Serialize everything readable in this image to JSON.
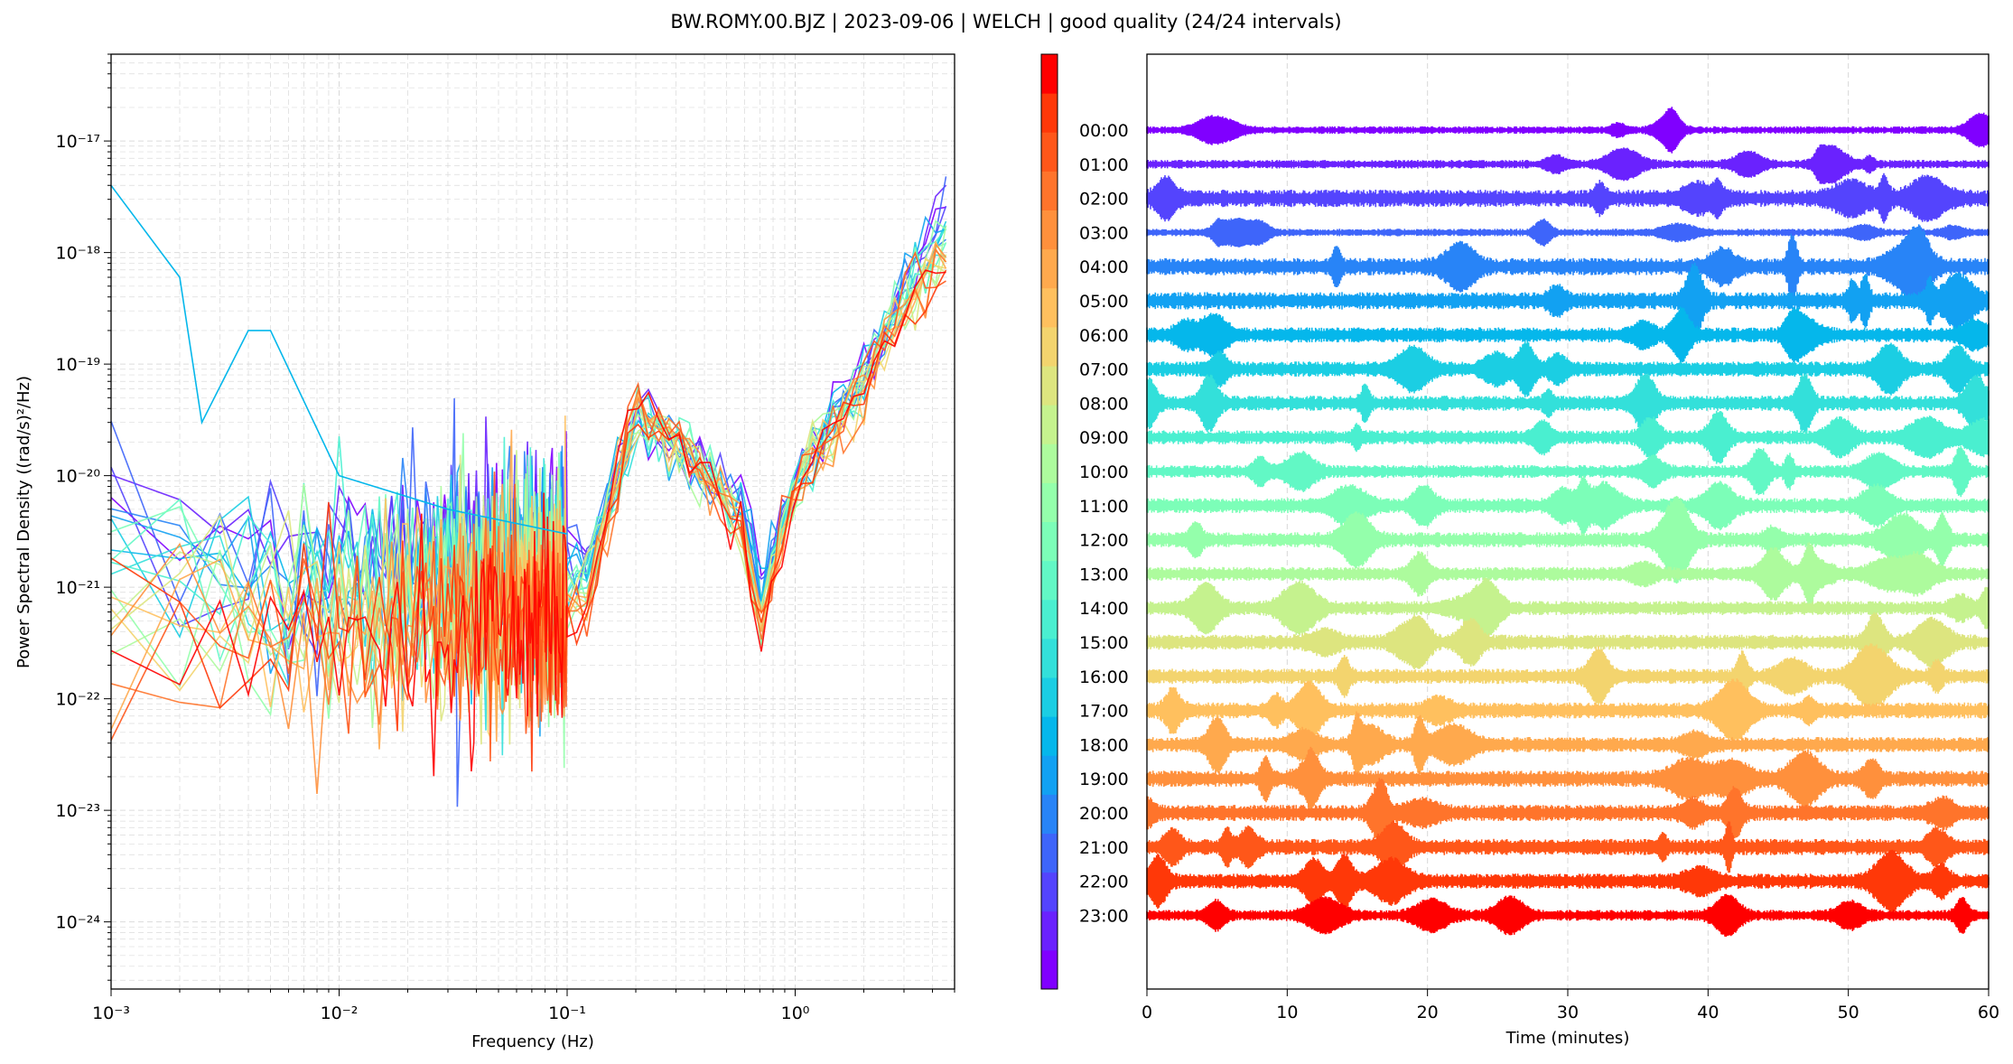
{
  "title": "BW.ROMY.00.BJZ | 2023-09-06 | WELCH | good quality (24/24 intervals)",
  "chart_data": [
    {
      "type": "line",
      "xlabel": "Frequency (Hz)",
      "ylabel": "Power Spectral Density ((rad/s)²/Hz)",
      "xscale": "log",
      "yscale": "log",
      "xlim": [
        0.001,
        5
      ],
      "ylim": [
        2.5e-25,
        6e-17
      ],
      "x_tick_labels": [
        "10⁻³",
        "10⁻²",
        "10⁻¹",
        "10⁰"
      ],
      "x_tick_values": [
        0.001,
        0.01,
        0.1,
        1
      ],
      "y_tick_labels": [
        "10⁻²⁴",
        "10⁻²³",
        "10⁻²²",
        "10⁻²¹",
        "10⁻²⁰",
        "10⁻¹⁹",
        "10⁻¹⁸",
        "10⁻¹⁷"
      ],
      "y_tick_values": [
        1e-24,
        1e-23,
        1e-22,
        1e-21,
        1e-20,
        1e-19,
        1e-18,
        1e-17
      ],
      "grid": true,
      "series_count": 24,
      "anchors": {
        "frequency": [
          0.001,
          0.003,
          0.01,
          0.03,
          0.06,
          0.1,
          0.12,
          0.2,
          0.3,
          0.6,
          0.7,
          1,
          2,
          3,
          5
        ],
        "psd_low_hour": [
          8e-21,
          2e-21,
          2e-21,
          2e-21,
          2e-21,
          2e-21,
          2e-21,
          3e-20,
          2e-20,
          5e-21,
          1e-21,
          1e-20,
          1e-19,
          5e-19,
          3e-18
        ],
        "psd_high_hour": [
          2e-22,
          3e-22,
          3e-22,
          4e-22,
          5e-22,
          5e-22,
          5e-22,
          4e-20,
          2e-20,
          3e-21,
          3e-22,
          1e-20,
          5e-20,
          3e-19,
          8e-19
        ]
      },
      "outlier_series": {
        "hour": 6,
        "frequency": [
          0.001,
          0.002,
          0.0025,
          0.004,
          0.005,
          0.01,
          0.03,
          0.1
        ],
        "psd": [
          4e-18,
          6e-19,
          3e-20,
          2e-19,
          2e-19,
          1e-20,
          5e-21,
          3e-21
        ]
      },
      "colormap": "rainbow"
    },
    {
      "type": "line",
      "subtype": "dayplot",
      "xlabel": "Time (minutes)",
      "xlim": [
        0,
        60
      ],
      "x_tick_labels": [
        "0",
        "10",
        "20",
        "30",
        "40",
        "50",
        "60"
      ],
      "x_tick_values": [
        0,
        10,
        20,
        30,
        40,
        50,
        60
      ],
      "y_tick_labels": [
        "00:00",
        "01:00",
        "02:00",
        "03:00",
        "04:00",
        "05:00",
        "06:00",
        "07:00",
        "08:00",
        "09:00",
        "10:00",
        "11:00",
        "12:00",
        "13:00",
        "14:00",
        "15:00",
        "16:00",
        "17:00",
        "18:00",
        "19:00",
        "20:00",
        "21:00",
        "22:00",
        "23:00"
      ],
      "trace_amplitudes_relative": [
        0.35,
        0.4,
        0.8,
        0.35,
        0.8,
        0.8,
        0.7,
        0.7,
        0.7,
        0.65,
        0.6,
        0.7,
        0.7,
        0.65,
        0.65,
        0.7,
        0.7,
        0.75,
        0.7,
        0.75,
        0.75,
        0.75,
        0.7,
        0.5
      ],
      "grid": true,
      "colormap": "rainbow"
    }
  ],
  "colorbar": {
    "colors": [
      "#8000ff",
      "#6a22fe",
      "#5444fd",
      "#3e65fa",
      "#2884f7",
      "#12a1f2",
      "#05b7eb",
      "#1bcee3",
      "#33e0da",
      "#4aefd0",
      "#62f8c5",
      "#7cfeb8",
      "#94ffab",
      "#adfb9d",
      "#c5f28e",
      "#dde57f",
      "#f3d46e",
      "#ffc05e",
      "#ffa94d",
      "#ff903c",
      "#ff742b",
      "#ff5719",
      "#ff3808",
      "#ff0000"
    ]
  }
}
